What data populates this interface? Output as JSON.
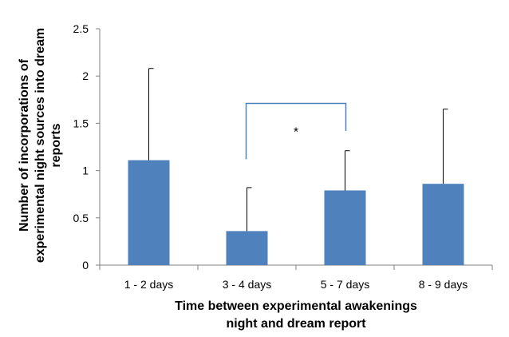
{
  "chart_data": {
    "type": "bar",
    "categories": [
      "1 - 2 days",
      "3 - 4 days",
      "5 - 7 days",
      "8 - 9 days"
    ],
    "values": [
      1.11,
      0.36,
      0.79,
      0.86
    ],
    "error_upper": [
      2.08,
      0.82,
      1.21,
      1.65
    ],
    "xlabel": [
      "Time between experimental awakenings",
      "night and dream report"
    ],
    "ylabel": [
      "Number of incorporations of",
      "experimental night sources into dream",
      "reports"
    ],
    "ylim": [
      0,
      2.5
    ],
    "yticks": [
      "0",
      "0.5",
      "1",
      "1.5",
      "2",
      "2.5"
    ],
    "bar_color": "#4f81bd",
    "significance": {
      "from_category": "3 - 4 days",
      "to_category": "5 - 7 days",
      "label": "*",
      "bracket_top": 1.71,
      "left_bottom": 1.12,
      "right_bottom": 1.42,
      "color": "#4f81bd"
    },
    "grid": false,
    "legend": "none"
  }
}
